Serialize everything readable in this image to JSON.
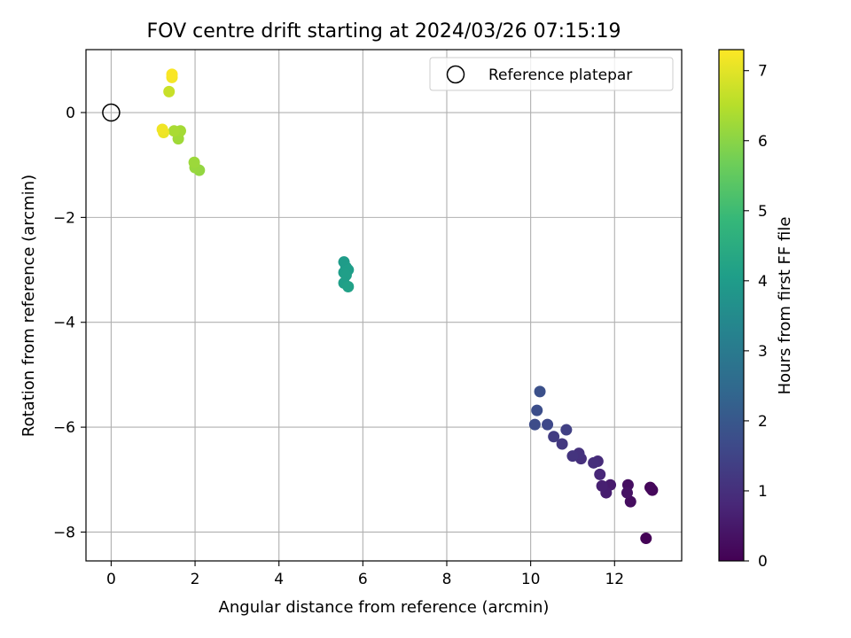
{
  "chart_data": {
    "type": "scatter",
    "title": "FOV centre drift starting at 2024/03/26 07:15:19",
    "xlabel": "Angular distance from reference (arcmin)",
    "ylabel": "Rotation from reference (arcmin)",
    "xlim": [
      -0.6,
      13.6
    ],
    "ylim": [
      -8.55,
      1.2
    ],
    "x_ticks": [
      0,
      2,
      4,
      6,
      8,
      10,
      12
    ],
    "y_ticks": [
      0,
      -2,
      -4,
      -6,
      -8
    ],
    "x_tick_labels": [
      "0",
      "2",
      "4",
      "6",
      "8",
      "10",
      "12"
    ],
    "y_tick_labels": [
      "0",
      "−2",
      "−4",
      "−6",
      "−8"
    ],
    "grid": true,
    "colormap": "viridis",
    "colormap_stops": [
      "#440154",
      "#482878",
      "#3e4989",
      "#31688e",
      "#26828e",
      "#1f9e89",
      "#35b779",
      "#6ece58",
      "#b5de2b",
      "#fde725"
    ],
    "colorbar": {
      "label": "Hours from first FF file",
      "range": [
        0,
        7.3
      ],
      "ticks": [
        0,
        1,
        2,
        3,
        4,
        5,
        6,
        7
      ],
      "tick_labels": [
        "0",
        "1",
        "2",
        "3",
        "4",
        "5",
        "6",
        "7"
      ]
    },
    "legend": {
      "location": "top-right",
      "entries": [
        {
          "label": "Reference platepar",
          "marker": "open-circle"
        }
      ]
    },
    "reference_point": {
      "x": 0,
      "y": 0
    },
    "points": [
      {
        "x": 12.75,
        "y": -8.12,
        "hours": 0.05
      },
      {
        "x": 12.85,
        "y": -7.15,
        "hours": 0.1
      },
      {
        "x": 12.9,
        "y": -7.2,
        "hours": 0.12
      },
      {
        "x": 12.88,
        "y": -7.18,
        "hours": 0.15
      },
      {
        "x": 12.38,
        "y": -7.42,
        "hours": 0.25
      },
      {
        "x": 12.32,
        "y": -7.1,
        "hours": 0.3
      },
      {
        "x": 12.3,
        "y": -7.25,
        "hours": 0.35
      },
      {
        "x": 11.9,
        "y": -7.1,
        "hours": 0.55
      },
      {
        "x": 11.8,
        "y": -7.25,
        "hours": 0.6
      },
      {
        "x": 11.7,
        "y": -7.12,
        "hours": 0.65
      },
      {
        "x": 11.65,
        "y": -6.9,
        "hours": 0.8
      },
      {
        "x": 11.6,
        "y": -6.65,
        "hours": 0.9
      },
      {
        "x": 11.5,
        "y": -6.68,
        "hours": 0.95
      },
      {
        "x": 11.2,
        "y": -6.6,
        "hours": 1.0
      },
      {
        "x": 11.15,
        "y": -6.5,
        "hours": 1.05
      },
      {
        "x": 11.0,
        "y": -6.55,
        "hours": 1.1
      },
      {
        "x": 10.75,
        "y": -6.32,
        "hours": 1.2
      },
      {
        "x": 10.55,
        "y": -6.18,
        "hours": 1.3
      },
      {
        "x": 10.85,
        "y": -6.05,
        "hours": 1.4
      },
      {
        "x": 10.4,
        "y": -5.95,
        "hours": 1.6
      },
      {
        "x": 10.1,
        "y": -5.95,
        "hours": 1.7
      },
      {
        "x": 10.15,
        "y": -5.68,
        "hours": 1.75
      },
      {
        "x": 10.22,
        "y": -5.32,
        "hours": 1.8
      },
      {
        "x": 5.55,
        "y": -2.85,
        "hours": 4.0
      },
      {
        "x": 5.6,
        "y": -2.95,
        "hours": 4.0
      },
      {
        "x": 5.65,
        "y": -3.0,
        "hours": 4.05
      },
      {
        "x": 5.55,
        "y": -3.05,
        "hours": 4.05
      },
      {
        "x": 5.6,
        "y": -3.1,
        "hours": 4.1
      },
      {
        "x": 5.55,
        "y": -3.25,
        "hours": 4.1
      },
      {
        "x": 5.65,
        "y": -3.32,
        "hours": 4.15
      },
      {
        "x": 2.1,
        "y": -1.1,
        "hours": 6.1
      },
      {
        "x": 2.0,
        "y": -1.05,
        "hours": 6.15
      },
      {
        "x": 1.98,
        "y": -0.95,
        "hours": 6.2
      },
      {
        "x": 1.6,
        "y": -0.5,
        "hours": 6.25
      },
      {
        "x": 1.65,
        "y": -0.35,
        "hours": 6.3
      },
      {
        "x": 1.5,
        "y": -0.35,
        "hours": 6.35
      },
      {
        "x": 1.38,
        "y": 0.4,
        "hours": 6.7
      },
      {
        "x": 1.25,
        "y": -0.38,
        "hours": 7.1
      },
      {
        "x": 1.22,
        "y": -0.32,
        "hours": 7.15
      },
      {
        "x": 1.45,
        "y": 0.67,
        "hours": 7.2
      },
      {
        "x": 1.45,
        "y": 0.73,
        "hours": 7.25
      }
    ]
  }
}
